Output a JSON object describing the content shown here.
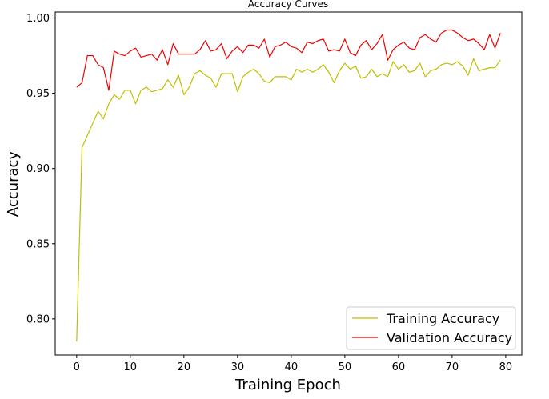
{
  "chart_data": {
    "type": "line",
    "title": "Accuracy Curves",
    "xlabel": "Training Epoch",
    "ylabel": "Accuracy",
    "xlim": [
      -4,
      83
    ],
    "ylim": [
      0.776,
      1.004
    ],
    "x_ticks": [
      0,
      10,
      20,
      30,
      40,
      50,
      60,
      70,
      80
    ],
    "y_ticks": [
      0.8,
      0.85,
      0.9,
      0.95,
      1.0
    ],
    "y_tick_labels": [
      "0.80",
      "0.85",
      "0.90",
      "0.95",
      "1.00"
    ],
    "grid": false,
    "legend_position": "lower-right",
    "series": [
      {
        "name": "Training Accuracy",
        "color": "#bfbf00",
        "values": [
          0.785,
          0.914,
          0.922,
          0.93,
          0.938,
          0.933,
          0.943,
          0.949,
          0.946,
          0.952,
          0.952,
          0.943,
          0.952,
          0.954,
          0.951,
          0.952,
          0.953,
          0.959,
          0.954,
          0.962,
          0.949,
          0.954,
          0.963,
          0.965,
          0.962,
          0.96,
          0.954,
          0.963,
          0.963,
          0.963,
          0.951,
          0.961,
          0.964,
          0.966,
          0.963,
          0.958,
          0.957,
          0.961,
          0.961,
          0.961,
          0.959,
          0.966,
          0.964,
          0.966,
          0.964,
          0.966,
          0.969,
          0.964,
          0.957,
          0.965,
          0.97,
          0.966,
          0.968,
          0.96,
          0.961,
          0.966,
          0.961,
          0.963,
          0.961,
          0.971,
          0.966,
          0.969,
          0.964,
          0.965,
          0.97,
          0.961,
          0.965,
          0.966,
          0.969,
          0.97,
          0.969,
          0.971,
          0.968,
          0.962,
          0.973,
          0.965,
          0.966,
          0.967,
          0.967,
          0.972
        ]
      },
      {
        "name": "Validation Accuracy",
        "color": "#ee0000",
        "values": [
          0.954,
          0.957,
          0.975,
          0.975,
          0.969,
          0.967,
          0.952,
          0.978,
          0.976,
          0.975,
          0.978,
          0.98,
          0.974,
          0.975,
          0.976,
          0.972,
          0.979,
          0.969,
          0.983,
          0.976,
          0.976,
          0.976,
          0.976,
          0.979,
          0.985,
          0.978,
          0.979,
          0.983,
          0.973,
          0.978,
          0.981,
          0.977,
          0.982,
          0.982,
          0.98,
          0.986,
          0.974,
          0.981,
          0.982,
          0.984,
          0.981,
          0.98,
          0.977,
          0.984,
          0.983,
          0.985,
          0.986,
          0.978,
          0.979,
          0.978,
          0.986,
          0.977,
          0.975,
          0.982,
          0.985,
          0.979,
          0.983,
          0.989,
          0.972,
          0.979,
          0.982,
          0.984,
          0.98,
          0.979,
          0.987,
          0.989,
          0.986,
          0.984,
          0.99,
          0.992,
          0.992,
          0.99,
          0.987,
          0.985,
          0.986,
          0.983,
          0.979,
          0.989,
          0.98,
          0.99
        ]
      }
    ]
  }
}
